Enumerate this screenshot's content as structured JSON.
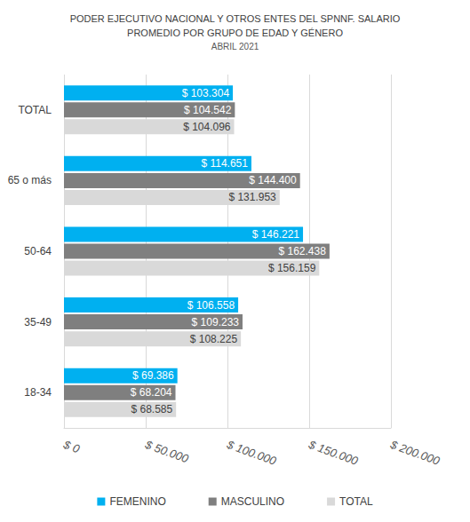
{
  "chart_data": {
    "type": "bar",
    "orientation": "horizontal",
    "title": "PODER EJECUTIVO NACIONAL Y OTROS ENTES DEL SPNNF. SALARIO\nPROMEDIO POR GRUPO DE EDAD Y GÉNERO",
    "subtitle": "ABRIL 2021",
    "categories": [
      "TOTAL",
      "65 o más",
      "50-64",
      "35-49",
      "18-34"
    ],
    "series": [
      {
        "name": "FEMENINO",
        "color": "#00b0f0",
        "values": [
          103304,
          114651,
          146221,
          106558,
          69386
        ],
        "value_labels": [
          "$ 103.304",
          "$ 114.651",
          "$ 146.221",
          "$ 106.558",
          "$ 69.386"
        ]
      },
      {
        "name": "MASCULINO",
        "color": "#7f7f7f",
        "values": [
          104542,
          144400,
          162438,
          109233,
          68204
        ],
        "value_labels": [
          "$ 104.542",
          "$ 144.400",
          "$ 162.438",
          "$ 109.233",
          "$ 68.204"
        ]
      },
      {
        "name": "TOTAL",
        "color": "#d9d9d9",
        "values": [
          104096,
          131953,
          156159,
          108225,
          68585
        ],
        "value_labels": [
          "$ 104.096",
          "$ 131.953",
          "$ 156.159",
          "$ 108.225",
          "$ 68.585"
        ]
      }
    ],
    "xlim": [
      0,
      200000
    ],
    "xticks": [
      {
        "value": 0,
        "label": "$ 0"
      },
      {
        "value": 50000,
        "label": "$ 50.000"
      },
      {
        "value": 100000,
        "label": "$ 100.000"
      },
      {
        "value": 150000,
        "label": "$ 150.000"
      },
      {
        "value": 200000,
        "label": "$ 200.000"
      }
    ],
    "grid": true,
    "legend": "bottom",
    "data_labels": true
  }
}
